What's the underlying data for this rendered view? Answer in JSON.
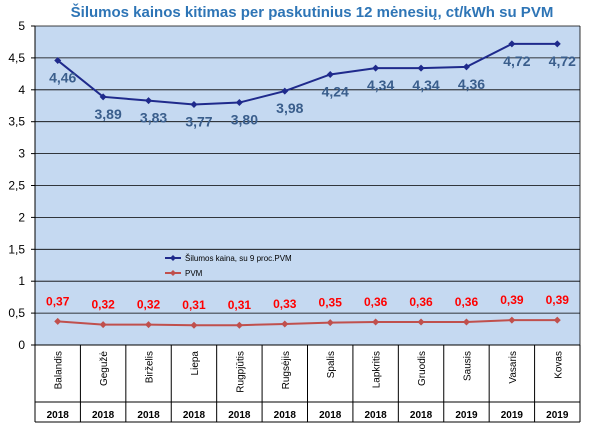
{
  "chart_data": {
    "type": "line",
    "title": "Šilumos kainos kitimas per paskutinius 12 mėnesių, ct/kWh su PVM",
    "categories": [
      "Balandis",
      "Gegužė",
      "Birželis",
      "Liepa",
      "Rugpjūtis",
      "Rugsėjis",
      "Spalis",
      "Lapkritis",
      "Gruodis",
      "Sausis",
      "Vasaris",
      "Kovas"
    ],
    "years": [
      "2018",
      "2018",
      "2018",
      "2018",
      "2018",
      "2018",
      "2018",
      "2018",
      "2018",
      "2019",
      "2019",
      "2019"
    ],
    "series": [
      {
        "name": "Šilumos kaina, su 9 proc.PVM",
        "values": [
          4.46,
          3.89,
          3.83,
          3.77,
          3.8,
          3.98,
          4.24,
          4.34,
          4.34,
          4.36,
          4.72,
          4.72
        ],
        "labels": [
          "4,46",
          "3,89",
          "3,83",
          "3,77",
          "3,80",
          "3,98",
          "4,24",
          "4,34",
          "4,34",
          "4,36",
          "4,72",
          "4,72"
        ],
        "color": "#1f2a8c",
        "label_color": "#3a5e8c"
      },
      {
        "name": "PVM",
        "values": [
          0.37,
          0.32,
          0.32,
          0.31,
          0.31,
          0.33,
          0.35,
          0.36,
          0.36,
          0.36,
          0.39,
          0.39
        ],
        "labels": [
          "0,37",
          "0,32",
          "0,32",
          "0,31",
          "0,31",
          "0,33",
          "0,35",
          "0,36",
          "0,36",
          "0,36",
          "0,39",
          "0,39"
        ],
        "color": "#c0504d",
        "label_color": "#ff0000"
      }
    ],
    "ylim": [
      0,
      5
    ],
    "yticks": [
      "0",
      "0,5",
      "1",
      "1,5",
      "2",
      "2,5",
      "3",
      "3,5",
      "4",
      "4,5",
      "5"
    ],
    "grid": true,
    "legend_position": "inside-left-middle",
    "colors": {
      "title": "#2e75b6",
      "plot_background": "#c5d9f1",
      "gridline": "#000000"
    }
  }
}
